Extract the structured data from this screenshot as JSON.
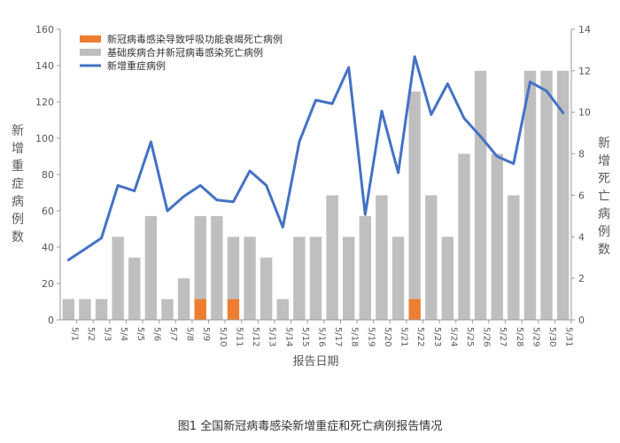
{
  "caption": "图1 全国新冠病毒感染新增重症和死亡病例报告情况",
  "colors": {
    "respiratory_deaths": "#ED7D31",
    "underlying_deaths": "#BFBFBF",
    "severe_line": "#4472C4",
    "axis": "#999999",
    "text": "#595959"
  },
  "chart_data": {
    "type": "bar",
    "title": "",
    "xlabel": "报告日期",
    "ylabel": "新增重症病例数",
    "ylabel_right": "新增死亡病例数",
    "ylim": [
      0,
      160
    ],
    "ylim_right": [
      0,
      14
    ],
    "yticks": [
      0,
      20,
      40,
      60,
      80,
      100,
      120,
      140,
      160
    ],
    "yticks_right": [
      0,
      2,
      4,
      6,
      8,
      10,
      12,
      14
    ],
    "legend_position": "top-left",
    "grid": false,
    "categories": [
      "5/1",
      "5/2",
      "5/3",
      "5/4",
      "5/5",
      "5/6",
      "5/7",
      "5/8",
      "5/9",
      "5/10",
      "5/11",
      "5/12",
      "5/13",
      "5/14",
      "5/15",
      "5/16",
      "5/17",
      "5/18",
      "5/19",
      "5/20",
      "5/21",
      "5/22",
      "5/23",
      "5/24",
      "5/25",
      "5/26",
      "5/27",
      "5/28",
      "5/29",
      "5/30",
      "5/31"
    ],
    "series": [
      {
        "name": "新冠病毒感染导致呼吸功能衰竭死亡病例",
        "type": "bar",
        "axis": "right",
        "values": [
          0,
          0,
          0,
          0,
          0,
          0,
          0,
          0,
          1,
          0,
          1,
          0,
          0,
          0,
          0,
          0,
          0,
          0,
          0,
          0,
          0,
          1,
          0,
          0,
          0,
          0,
          0,
          0,
          0,
          0,
          0
        ]
      },
      {
        "name": "基础疾病合并新冠病毒感染死亡病例",
        "type": "bar",
        "axis": "right",
        "values": [
          1,
          1,
          1,
          4,
          3,
          5,
          1,
          2,
          4,
          5,
          3,
          4,
          3,
          1,
          4,
          4,
          6,
          4,
          5,
          6,
          4,
          10,
          6,
          4,
          8,
          12,
          8,
          6,
          12,
          12,
          12
        ]
      },
      {
        "name": "新增重症病例",
        "type": "line",
        "axis": "left",
        "values": [
          33,
          39,
          45,
          74,
          71,
          98,
          60,
          68,
          74,
          66,
          65,
          82,
          74,
          51,
          98,
          121,
          119,
          139,
          58,
          115,
          81,
          145,
          113,
          130,
          111,
          101,
          90,
          86,
          131,
          126,
          114
        ]
      }
    ]
  }
}
